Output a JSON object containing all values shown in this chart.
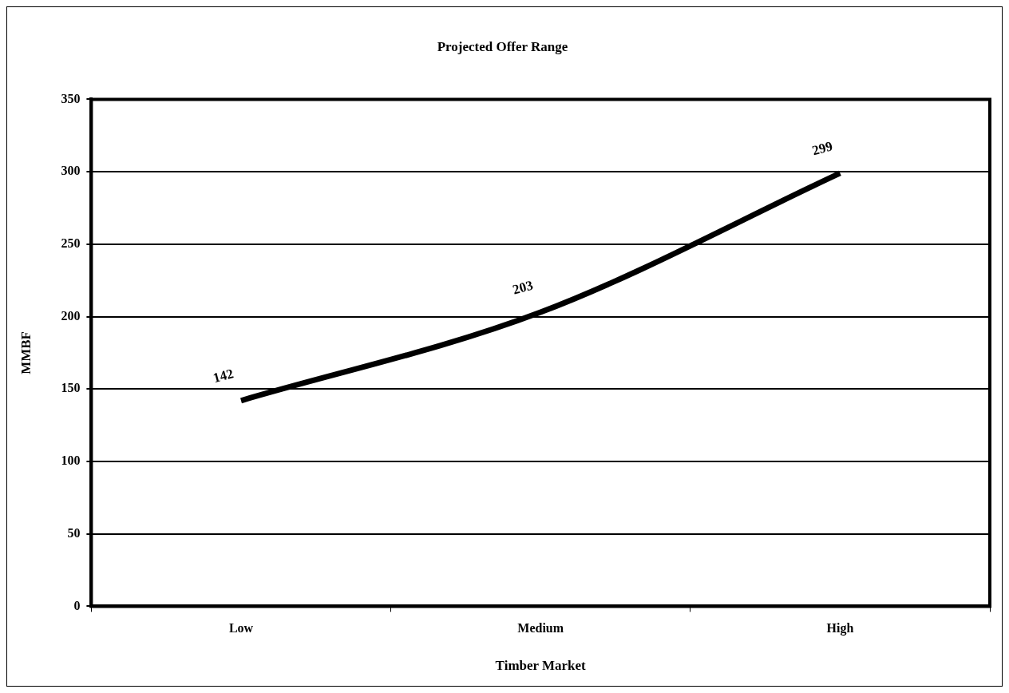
{
  "chart_data": {
    "type": "line",
    "title": "Projected Offer Range",
    "xlabel": "Timber Market",
    "ylabel": "MMBF",
    "categories": [
      "Low",
      "Medium",
      "High"
    ],
    "series": [
      {
        "color": "#000000",
        "values": [
          142,
          203,
          299
        ]
      }
    ],
    "ylim": [
      0,
      350
    ],
    "yticks": [
      0,
      50,
      100,
      150,
      200,
      250,
      300,
      350
    ],
    "grid": "y",
    "marker": "none",
    "line_style": "solid",
    "data_labels": true
  }
}
